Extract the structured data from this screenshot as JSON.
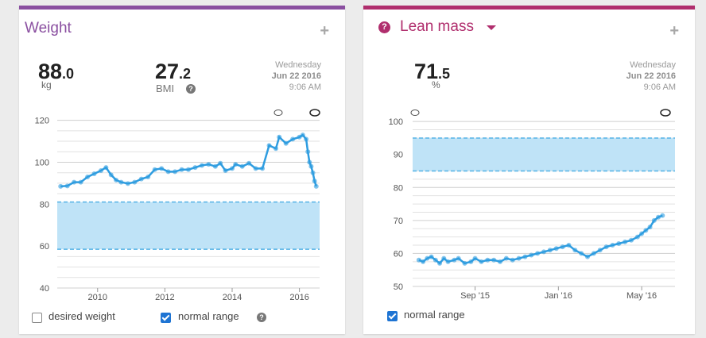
{
  "weight_card": {
    "title": "Weight",
    "add_label": "+",
    "weight_int": "88",
    "weight_dec": ".0",
    "weight_unit": "kg",
    "bmi_int": "27",
    "bmi_dec": ".2",
    "bmi_label": "BMI",
    "date_day": "Wednesday",
    "date_date": "Jun 22 2016",
    "date_time": "9:06 AM",
    "options": {
      "desired_weight": "desired weight",
      "normal_range": "normal range",
      "desired_checked": false,
      "normal_checked": true
    }
  },
  "lean_card": {
    "title": "Lean mass",
    "add_label": "+",
    "value_int": "71",
    "value_dec": ".5",
    "value_unit": "%",
    "date_day": "Wednesday",
    "date_date": "Jun 22 2016",
    "date_time": "9:06 AM",
    "options": {
      "normal_range": "normal range",
      "normal_checked": true
    }
  },
  "colors": {
    "weight_accent": "#8a4fa0",
    "lean_accent": "#b02e6d",
    "line": "#2f9de0",
    "range_fill": "#bfe3f7",
    "range_edge": "#55b3e6"
  },
  "chart_data": [
    {
      "type": "line",
      "title": "",
      "y_ticks": [
        40,
        60,
        80,
        100,
        120
      ],
      "ylim": [
        40,
        121
      ],
      "x_ticks": [
        "2010",
        "2012",
        "2014",
        "2016"
      ],
      "xlim": [
        2008.8,
        2016.6
      ],
      "normal_range": [
        58.5,
        81
      ],
      "series": [
        {
          "x": [
            2008.9,
            2009.1,
            2009.3,
            2009.5,
            2009.7,
            2009.9,
            2010.1,
            2010.25,
            2010.4,
            2010.55,
            2010.7,
            2010.9,
            2011.1,
            2011.3,
            2011.5,
            2011.7,
            2011.9,
            2012.1,
            2012.3,
            2012.5,
            2012.7,
            2012.9,
            2013.1,
            2013.3,
            2013.5,
            2013.65,
            2013.8,
            2014.0,
            2014.1,
            2014.3,
            2014.5,
            2014.7,
            2014.9,
            2015.1,
            2015.3,
            2015.4,
            2015.6,
            2015.8,
            2016.0,
            2016.1,
            2016.2,
            2016.25,
            2016.3,
            2016.35,
            2016.4,
            2016.45,
            2016.5
          ],
          "values": [
            88.5,
            88.7,
            90.5,
            90.5,
            93,
            94.5,
            96,
            97.5,
            94,
            91.5,
            90.5,
            89.8,
            90.5,
            92,
            93,
            96.5,
            97,
            95.5,
            95.5,
            96.5,
            96.5,
            97.5,
            98.5,
            99,
            98,
            99.5,
            96,
            97,
            99,
            98,
            99.5,
            97,
            97,
            108,
            106.5,
            112,
            109,
            111,
            112,
            113,
            111,
            105,
            100,
            98,
            95,
            91,
            88.5
          ]
        }
      ]
    },
    {
      "type": "scatter",
      "title": "",
      "y_ticks": [
        50,
        60,
        70,
        80,
        90,
        100
      ],
      "ylim": [
        50,
        101
      ],
      "x_ticks": [
        "Sep '15",
        "Jan '16",
        "May '16"
      ],
      "normal_range": [
        85,
        95
      ],
      "series": [
        {
          "x_months_since_2015_06": [
            0.3,
            0.5,
            0.7,
            0.9,
            1.1,
            1.3,
            1.5,
            1.7,
            2.0,
            2.2,
            2.5,
            2.8,
            3.0,
            3.3,
            3.6,
            3.9,
            4.2,
            4.5,
            4.8,
            5.1,
            5.4,
            5.7,
            6.0,
            6.3,
            6.6,
            6.9,
            7.2,
            7.5,
            7.8,
            8.1,
            8.4,
            8.7,
            9.0,
            9.3,
            9.6,
            9.9,
            10.2,
            10.5,
            10.8,
            11.0,
            11.2,
            11.4,
            11.6,
            11.8,
            12.0
          ],
          "values": [
            58,
            57.5,
            58.5,
            59,
            58,
            57,
            58.5,
            57.5,
            58,
            58.5,
            57,
            57.5,
            58.5,
            57.5,
            58,
            58,
            57.5,
            58.5,
            58,
            58.5,
            59,
            59.5,
            60,
            60.5,
            61,
            61.5,
            62,
            62.5,
            61,
            60,
            59,
            60,
            61,
            62,
            62.5,
            63,
            63.5,
            64,
            65,
            66,
            67,
            68,
            70,
            71,
            71.5
          ]
        }
      ]
    }
  ]
}
